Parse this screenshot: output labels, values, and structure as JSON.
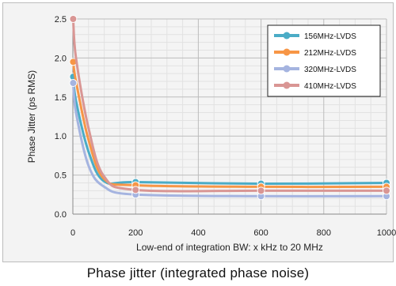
{
  "caption": "Phase jitter (integrated phase noise)",
  "chart_data": {
    "type": "line",
    "title": "",
    "xlabel": "Low-end of integration BW: x kHz to 20 MHz",
    "ylabel": "Phase Jitter (ps RMS)",
    "xlim": [
      0,
      1000
    ],
    "ylim": [
      0,
      2.5
    ],
    "x_ticks": [
      0,
      200,
      400,
      600,
      800,
      1000
    ],
    "y_ticks": [
      "0.0",
      "0.5",
      "1.0",
      "1.5",
      "2.0",
      "2.5"
    ],
    "grid": true,
    "legend_position": "top-right",
    "x": [
      1,
      10,
      50,
      100,
      200,
      600,
      1000
    ],
    "series": [
      {
        "name": "156MHz-LVDS",
        "color": "#4bacc6",
        "values": [
          1.76,
          1.45,
          0.8,
          0.42,
          0.41,
          0.39,
          0.4
        ],
        "markers": [
          true,
          false,
          false,
          false,
          true,
          true,
          true
        ]
      },
      {
        "name": "212MHz-LVDS",
        "color": "#f79646",
        "values": [
          1.95,
          1.7,
          0.95,
          0.45,
          0.37,
          0.35,
          0.35
        ],
        "markers": [
          true,
          false,
          false,
          false,
          true,
          true,
          true
        ]
      },
      {
        "name": "320MHz-LVDS",
        "color": "#a5b4e0",
        "values": [
          1.68,
          1.3,
          0.62,
          0.35,
          0.25,
          0.23,
          0.23
        ],
        "markers": [
          true,
          false,
          false,
          false,
          true,
          true,
          true
        ]
      },
      {
        "name": "410MHz-LVDS",
        "color": "#d99694",
        "values": [
          2.5,
          2.0,
          1.1,
          0.48,
          0.31,
          0.3,
          0.3
        ],
        "markers": [
          true,
          false,
          false,
          false,
          true,
          true,
          true
        ]
      }
    ]
  }
}
